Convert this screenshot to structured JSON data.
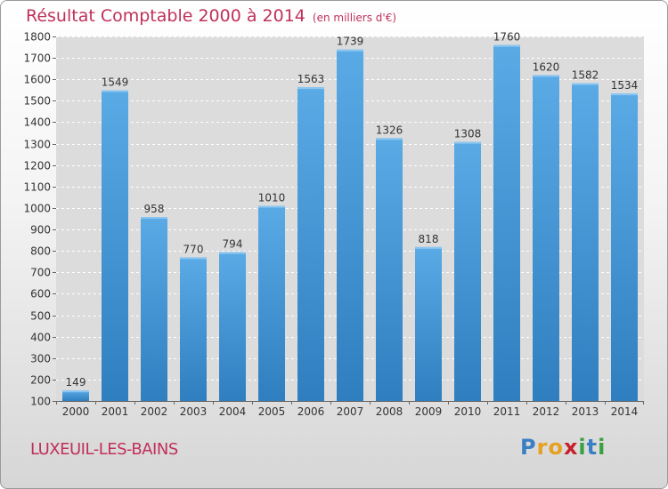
{
  "header": {
    "title": "Résultat Comptable 2000 à 2014",
    "subtitle": "(en milliers d'€)"
  },
  "footer": {
    "location": "LUXEUIL-LES-BAINS"
  },
  "brand": {
    "logo_letters": [
      "P",
      "r",
      "o",
      "x",
      "i",
      "t",
      "i"
    ],
    "logo_colors": [
      "#3a7fc4",
      "#e8a020",
      "#e8a020",
      "#c8202a",
      "#3aa040",
      "#3a7fc4",
      "#3aa040"
    ]
  },
  "chart_data": {
    "type": "bar",
    "title": "Résultat Comptable 2000 à 2014",
    "subtitle": "(en milliers d'€)",
    "xlabel": "",
    "ylabel": "",
    "categories": [
      "2000",
      "2001",
      "2002",
      "2003",
      "2004",
      "2005",
      "2006",
      "2007",
      "2008",
      "2009",
      "2010",
      "2011",
      "2012",
      "2013",
      "2014"
    ],
    "values": [
      149,
      1549,
      958,
      770,
      794,
      1010,
      1563,
      1739,
      1326,
      818,
      1308,
      1760,
      1620,
      1582,
      1534
    ],
    "ylim": [
      100,
      1800
    ],
    "yticks": [
      100,
      200,
      300,
      400,
      500,
      600,
      700,
      800,
      900,
      1000,
      1100,
      1200,
      1300,
      1400,
      1500,
      1600,
      1700,
      1800
    ],
    "grid": true,
    "bar_color_top": "#5aaae6",
    "bar_color_bottom": "#2f7fc0"
  }
}
